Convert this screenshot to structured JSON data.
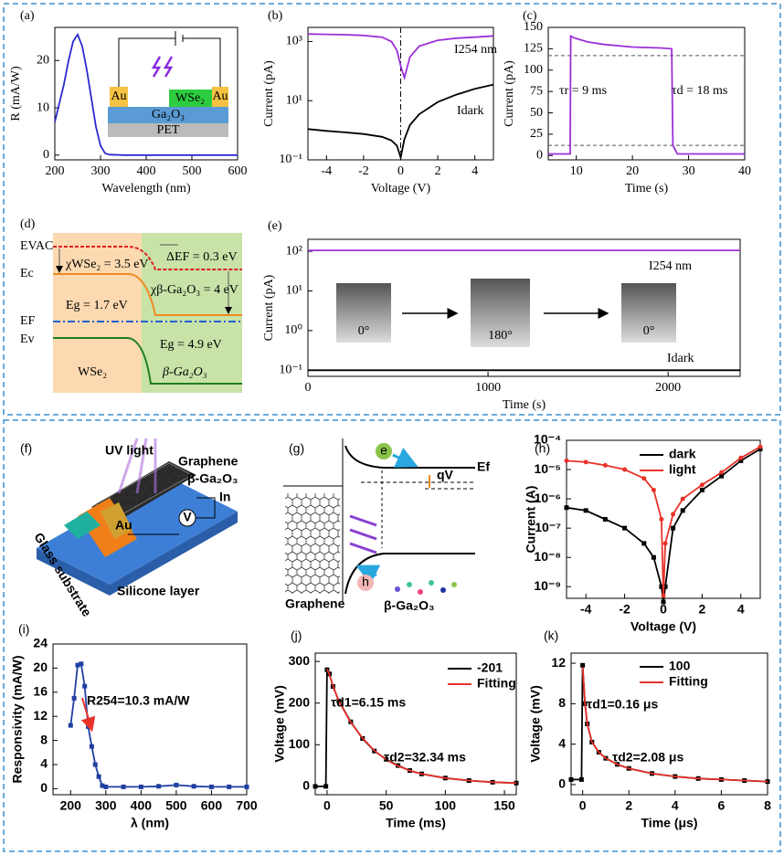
{
  "chart_data": [
    {
      "type": "line",
      "panel": "(a)",
      "x_label": "Wavelength (nm)",
      "y_label": "R (mA/W)",
      "x": [
        200,
        210,
        220,
        230,
        240,
        250,
        260,
        270,
        280,
        290,
        300,
        310,
        320,
        350,
        400,
        500,
        600
      ],
      "values": [
        7,
        11,
        15,
        20,
        24,
        25.5,
        23,
        18,
        12,
        6,
        2,
        0.4,
        0.1,
        0,
        0,
        0,
        0
      ],
      "color": "#2a2ad0",
      "xlim": [
        200,
        600
      ],
      "xticks": [
        200,
        300,
        400,
        500,
        600
      ],
      "ylim": [
        -1,
        27
      ],
      "yticks": [
        0,
        10,
        20
      ],
      "inset_labels": [
        "Au",
        "WSe₂",
        "Au",
        "Ga₂O₃",
        "PET"
      ]
    },
    {
      "type": "line",
      "panel": "(b)",
      "x_label": "Voltage (V)",
      "y_label": "Current (pA)",
      "yscale": "log",
      "x": [
        -5,
        -4,
        -3,
        -2,
        -1,
        -0.5,
        -0.2,
        0,
        0.2,
        0.5,
        1,
        2,
        3,
        4,
        5
      ],
      "series": [
        {
          "name": "I254 nm",
          "color": "#9b30d9",
          "values": [
            1800,
            1750,
            1700,
            1600,
            1400,
            1000,
            500,
            150,
            60,
            300,
            700,
            1100,
            1300,
            1400,
            1550
          ]
        },
        {
          "name": "Idark",
          "color": "#000000",
          "values": [
            1.1,
            0.95,
            0.85,
            0.75,
            0.6,
            0.45,
            0.3,
            0.12,
            0.5,
            1.5,
            3.5,
            9,
            16,
            25,
            35
          ]
        }
      ],
      "xlim": [
        -5,
        5
      ],
      "xticks": [
        -4,
        -2,
        0,
        2,
        4
      ],
      "ylim": [
        0.1,
        3000
      ],
      "yticks": [
        {
          "value": 0.1,
          "label": "10⁻¹"
        },
        {
          "value": 10,
          "label": "10¹"
        },
        {
          "value": 1000,
          "label": "10³"
        }
      ],
      "reference_x": [
        0
      ]
    },
    {
      "type": "line",
      "panel": "(c)",
      "x_label": "Time (s)",
      "y_label": "Current (pA)",
      "x": [
        5,
        8.9,
        9,
        9.5,
        12,
        15,
        20,
        25,
        27,
        27.2,
        28,
        30,
        40
      ],
      "values": [
        2,
        2,
        140,
        138,
        133,
        130,
        127,
        126,
        125,
        12,
        2,
        2,
        2
      ],
      "color": "#9b30d9",
      "xlim": [
        5,
        40
      ],
      "xticks": [
        10,
        20,
        30,
        40
      ],
      "ylim": [
        -5,
        150
      ],
      "yticks": [
        0,
        25,
        50,
        75,
        100,
        125,
        150
      ],
      "reference_lines": [
        117,
        12
      ],
      "annotations": [
        "τr = 9 ms",
        "τd = 18 ms"
      ]
    },
    {
      "type": "line",
      "panel": "(e)",
      "x_label": "Time (s)",
      "y_label": "Current (pA)",
      "yscale": "log",
      "x": [
        0,
        2400
      ],
      "series": [
        {
          "name": "I254 nm",
          "color": "#9b30d9",
          "values": [
            105,
            105
          ]
        },
        {
          "name": "Idark",
          "color": "#000000",
          "values": [
            0.1,
            0.1
          ]
        }
      ],
      "xlim": [
        0,
        2400
      ],
      "xticks": [
        0,
        1000,
        2000
      ],
      "ylim": [
        0.07,
        200
      ],
      "yticks": [
        {
          "value": 0.1,
          "label": "10⁻¹"
        },
        {
          "value": 1,
          "label": "10⁰"
        },
        {
          "value": 10,
          "label": "10¹"
        },
        {
          "value": 100,
          "label": "10²"
        }
      ],
      "photo_labels": [
        "0°",
        "180°",
        "0°"
      ]
    },
    {
      "type": "line",
      "panel": "(h)",
      "x_label": "Voltage (V)",
      "y_label": "Current (A)",
      "yscale": "log",
      "x": [
        -5,
        -4,
        -3,
        -2,
        -1,
        -0.5,
        -0.1,
        0,
        0.1,
        0.5,
        1,
        2,
        3,
        4,
        5
      ],
      "series": [
        {
          "name": "dark",
          "color": "#000000",
          "marker": "square",
          "values": [
            5e-07,
            4e-07,
            2e-07,
            1e-07,
            3e-08,
            1e-08,
            1e-09,
            3e-10,
            1e-09,
            1e-07,
            4e-07,
            2e-06,
            6e-06,
            2e-05,
            5e-05
          ]
        },
        {
          "name": "light",
          "color": "#e8322a",
          "marker": "circle",
          "values": [
            2e-05,
            1.8e-05,
            1.4e-05,
            1e-05,
            5e-06,
            2e-06,
            2e-07,
            5e-10,
            3e-08,
            3e-07,
            1e-06,
            3e-06,
            8e-06,
            2.5e-05,
            6e-05
          ]
        }
      ],
      "xlim": [
        -5,
        5
      ],
      "xticks": [
        -4,
        -2,
        0,
        2,
        4
      ],
      "ylim": [
        4e-10,
        0.0001
      ],
      "yticks": [
        {
          "value": 1e-09,
          "label": "10⁻⁹"
        },
        {
          "value": 1e-08,
          "label": "10⁻⁸"
        },
        {
          "value": 1e-07,
          "label": "10⁻⁷"
        },
        {
          "value": 1e-06,
          "label": "10⁻⁶"
        },
        {
          "value": 1e-05,
          "label": "10⁻⁵"
        },
        {
          "value": 0.0001,
          "label": "10⁻⁴"
        }
      ]
    },
    {
      "type": "line",
      "panel": "(i)",
      "x_label": "λ (nm)",
      "y_label": "Responsivity (mA/W)",
      "x": [
        200,
        210,
        220,
        230,
        240,
        250,
        260,
        270,
        280,
        290,
        300,
        350,
        400,
        450,
        500,
        550,
        600,
        650,
        700
      ],
      "values": [
        10.5,
        15,
        20.5,
        20.7,
        17,
        10.3,
        7,
        4,
        2,
        0.5,
        0.3,
        0.3,
        0.3,
        0.4,
        0.6,
        0.4,
        0.3,
        0.3,
        0.3
      ],
      "color": "#1f3fa0",
      "marker": "square",
      "xlim": [
        150,
        700
      ],
      "xticks": [
        200,
        300,
        400,
        500,
        600,
        700
      ],
      "ylim": [
        -1,
        24
      ],
      "yticks": [
        0,
        4,
        8,
        12,
        16,
        20,
        24
      ],
      "annotations": [
        "R254=10.3 mA/W"
      ]
    },
    {
      "type": "line",
      "panel": "(j)",
      "x_label": "Time (ms)",
      "y_label": "Voltage (mV)",
      "x": [
        -10,
        -1,
        0,
        2,
        5,
        10,
        20,
        30,
        40,
        50,
        60,
        70,
        80,
        100,
        120,
        140,
        160
      ],
      "series": [
        {
          "name": "-201",
          "color": "#000000",
          "marker": "square",
          "values": [
            0,
            0,
            280,
            270,
            240,
            205,
            155,
            115,
            85,
            65,
            50,
            38,
            30,
            20,
            14,
            10,
            8
          ]
        },
        {
          "name": "Fitting",
          "color": "#e8322a",
          "values": [
            null,
            null,
            282,
            268,
            242,
            204,
            154,
            116,
            86,
            64,
            49,
            38,
            30,
            20,
            14,
            10,
            8
          ]
        }
      ],
      "xlim": [
        -10,
        160
      ],
      "xticks": [
        0,
        50,
        100,
        150
      ],
      "ylim": [
        -20,
        320
      ],
      "yticks": [
        0,
        100,
        200,
        300
      ],
      "annotations": [
        "τd1=6.15 ms",
        "τd2=32.34 ms"
      ]
    },
    {
      "type": "line",
      "panel": "(k)",
      "x_label": "Time (μs)",
      "y_label": "Voltage (mV)",
      "x": [
        -0.5,
        -0.05,
        0,
        0.1,
        0.2,
        0.4,
        0.7,
        1,
        1.5,
        2,
        3,
        4,
        5,
        6,
        7,
        8
      ],
      "series": [
        {
          "name": "100",
          "color": "#000000",
          "marker": "square",
          "values": [
            0.5,
            0.5,
            11.8,
            8,
            6,
            4.2,
            3.2,
            2.6,
            2,
            1.6,
            1.1,
            0.8,
            0.6,
            0.5,
            0.4,
            0.3
          ]
        },
        {
          "name": "Fitting",
          "color": "#e8322a",
          "values": [
            null,
            null,
            11.6,
            8.1,
            6,
            4.2,
            3.2,
            2.6,
            2,
            1.6,
            1.1,
            0.8,
            0.6,
            0.5,
            0.4,
            0.3
          ]
        }
      ],
      "xlim": [
        -0.5,
        8
      ],
      "xticks": [
        0,
        2,
        4,
        6,
        8
      ],
      "ylim": [
        -1,
        13
      ],
      "yticks": [
        0,
        4,
        8,
        12
      ],
      "annotations": [
        "τd1=0.16 μs",
        "τd2=2.08 μs"
      ]
    }
  ],
  "diagrams": {
    "d": {
      "panel": "(d)",
      "levels": [
        "EVAC",
        "Ec",
        "EF",
        "Ev"
      ],
      "notes": [
        "χWSe₂ = 3.5 eV",
        "ΔEF = 0.3 eV",
        "χβ-Ga₂O₃ = 4 eV",
        "Eg = 1.7 eV",
        "Eg = 4.9 eV"
      ],
      "materials": [
        "WSe₂",
        "β-Ga₂O₃"
      ]
    },
    "f": {
      "panel": "(f)",
      "labels": [
        "UV light",
        "Graphene",
        "β-Ga₂O₃",
        "In",
        "V",
        "Au",
        "Glass substrate",
        "Silicone layer"
      ]
    },
    "g": {
      "panel": "(g)",
      "labels": [
        "e",
        "qV",
        "Ef",
        "h",
        "Graphene",
        "β-Ga₂O₃"
      ]
    }
  }
}
